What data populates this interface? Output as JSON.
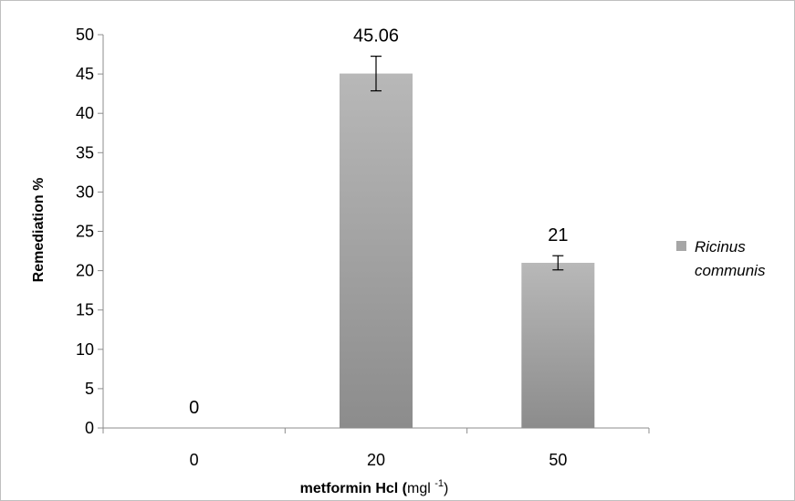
{
  "chart_data": {
    "type": "bar",
    "categories": [
      "0",
      "20",
      "50"
    ],
    "series": [
      {
        "name": "Ricinus communis",
        "values": [
          0,
          45.06,
          21
        ],
        "error": [
          0,
          2.2,
          0.9
        ],
        "data_labels": [
          "0",
          "45.06",
          "21"
        ]
      }
    ],
    "ylabel": "Remediation %",
    "xlabel": {
      "bold_part": "metformin Hcl (",
      "unit_part": "mgl ",
      "superscript": "-1",
      "close": ")"
    },
    "ylim": [
      0,
      50
    ],
    "yticks": [
      0,
      5,
      10,
      15,
      20,
      25,
      30,
      35,
      40,
      45,
      50
    ],
    "grid": false,
    "legend": {
      "position": "right",
      "lines": [
        "Ricinus",
        "communis"
      ]
    },
    "colors": {
      "bar_top": "#b8b8b8",
      "bar_bottom": "#8c8c8c",
      "axis": "#8c8c8c",
      "legend_swatch": "#a6a6a6"
    }
  }
}
